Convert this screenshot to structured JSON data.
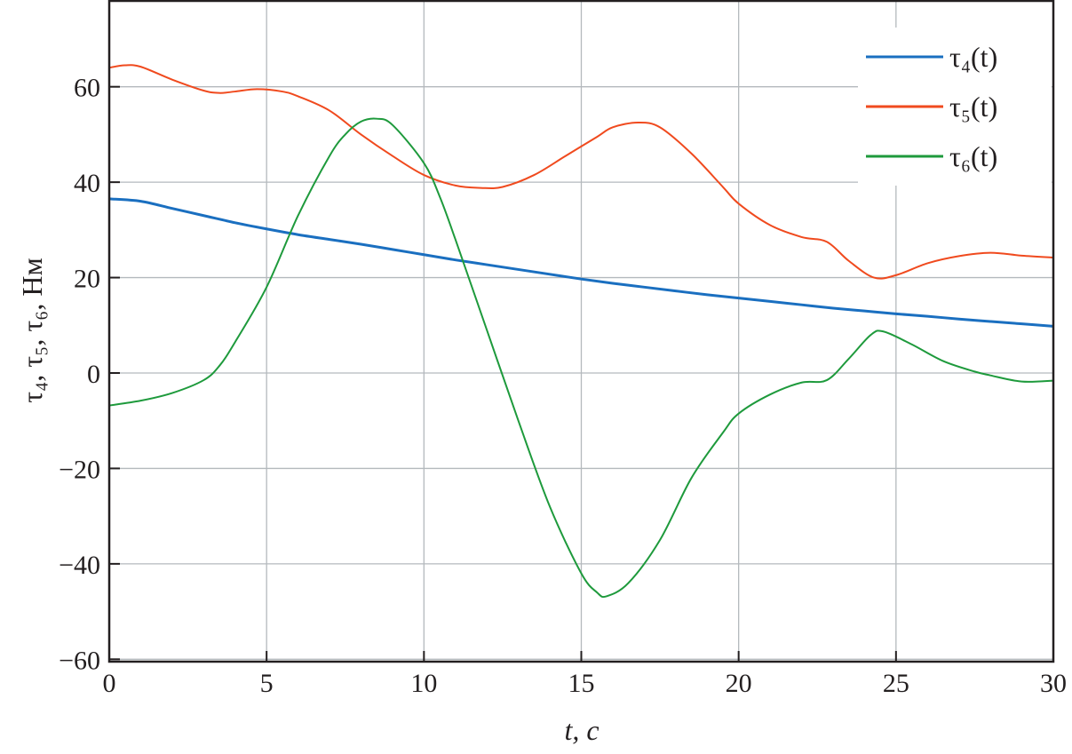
{
  "chart_data": {
    "type": "line",
    "xlabel": "t, c",
    "ylabel": "τ₄, τ₅, τ₆, Нм",
    "xlim": [
      0,
      30
    ],
    "ylim": [
      -60.5,
      78
    ],
    "xticks": [
      0,
      5,
      10,
      15,
      20,
      25,
      30
    ],
    "yticks": [
      -60,
      -40,
      -20,
      0,
      20,
      40,
      60
    ],
    "xtick_labels": [
      "0",
      "5",
      "10",
      "15",
      "20",
      "25",
      "30"
    ],
    "ytick_labels": [
      "−60",
      "−40",
      "−20",
      "0",
      "20",
      "40",
      "60"
    ],
    "grid": true,
    "legend_position": "top-right",
    "series": [
      {
        "name": "τ₄(t)",
        "color": "#1a6fc0",
        "x": [
          0,
          1,
          2,
          3,
          4,
          5,
          6,
          7,
          8,
          9,
          10,
          11,
          12,
          13,
          14,
          15,
          16,
          17,
          18,
          19,
          20,
          21,
          22,
          23,
          24,
          25,
          26,
          27,
          28,
          29,
          30
        ],
        "y": [
          36.5,
          36,
          34.5,
          33,
          31.5,
          30.2,
          29,
          28,
          27,
          25.9,
          24.8,
          23.7,
          22.7,
          21.7,
          20.7,
          19.7,
          18.8,
          18,
          17.2,
          16.4,
          15.7,
          15,
          14.3,
          13.6,
          13,
          12.4,
          11.9,
          11.3,
          10.8,
          10.3,
          9.8
        ]
      },
      {
        "name": "τ₅(t)",
        "color": "#f04a1e",
        "x": [
          0,
          0.5,
          1,
          2,
          3,
          3.5,
          4,
          4.7,
          5.5,
          6,
          7,
          8,
          9,
          10,
          11,
          11.8,
          12.5,
          13.5,
          14.5,
          15.5,
          16,
          16.8,
          17.5,
          18.5,
          19.5,
          20,
          21,
          22,
          22.8,
          23.5,
          24.3,
          25,
          26,
          27,
          28,
          29,
          30
        ],
        "y": [
          64,
          64.5,
          64.2,
          61.5,
          59.2,
          58.7,
          59,
          59.5,
          59,
          58,
          55,
          50,
          45.5,
          41.5,
          39.3,
          38.8,
          39,
          41.5,
          45.5,
          49.5,
          51.5,
          52.5,
          51.5,
          46,
          39,
          35.5,
          31,
          28.5,
          27.5,
          23.5,
          20,
          20.5,
          23,
          24.5,
          25.2,
          24.6,
          24.2
        ]
      },
      {
        "name": "τ₆(t)",
        "color": "#1e9a3c",
        "x": [
          0,
          1,
          2,
          3,
          3.5,
          4,
          5,
          6,
          7,
          7.5,
          8,
          8.5,
          9,
          10,
          10.5,
          11,
          12,
          13,
          14,
          15,
          15.5,
          15.8,
          16.5,
          17.5,
          18.5,
          19.5,
          20,
          21,
          22,
          22.8,
          23.5,
          24.2,
          24.6,
          25.5,
          26.5,
          27.5,
          28,
          29,
          30
        ],
        "y": [
          -6.8,
          -5.8,
          -4.2,
          -1.5,
          1.5,
          6.5,
          18,
          33,
          45.5,
          50,
          52.7,
          53.3,
          52,
          44,
          37,
          28,
          9,
          -10,
          -28,
          -42,
          -46,
          -46.8,
          -44,
          -35,
          -22,
          -12.5,
          -8.5,
          -4.5,
          -2,
          -1.5,
          3,
          8,
          8.7,
          6,
          2.5,
          0.3,
          -0.5,
          -1.8,
          -1.6
        ]
      }
    ]
  }
}
